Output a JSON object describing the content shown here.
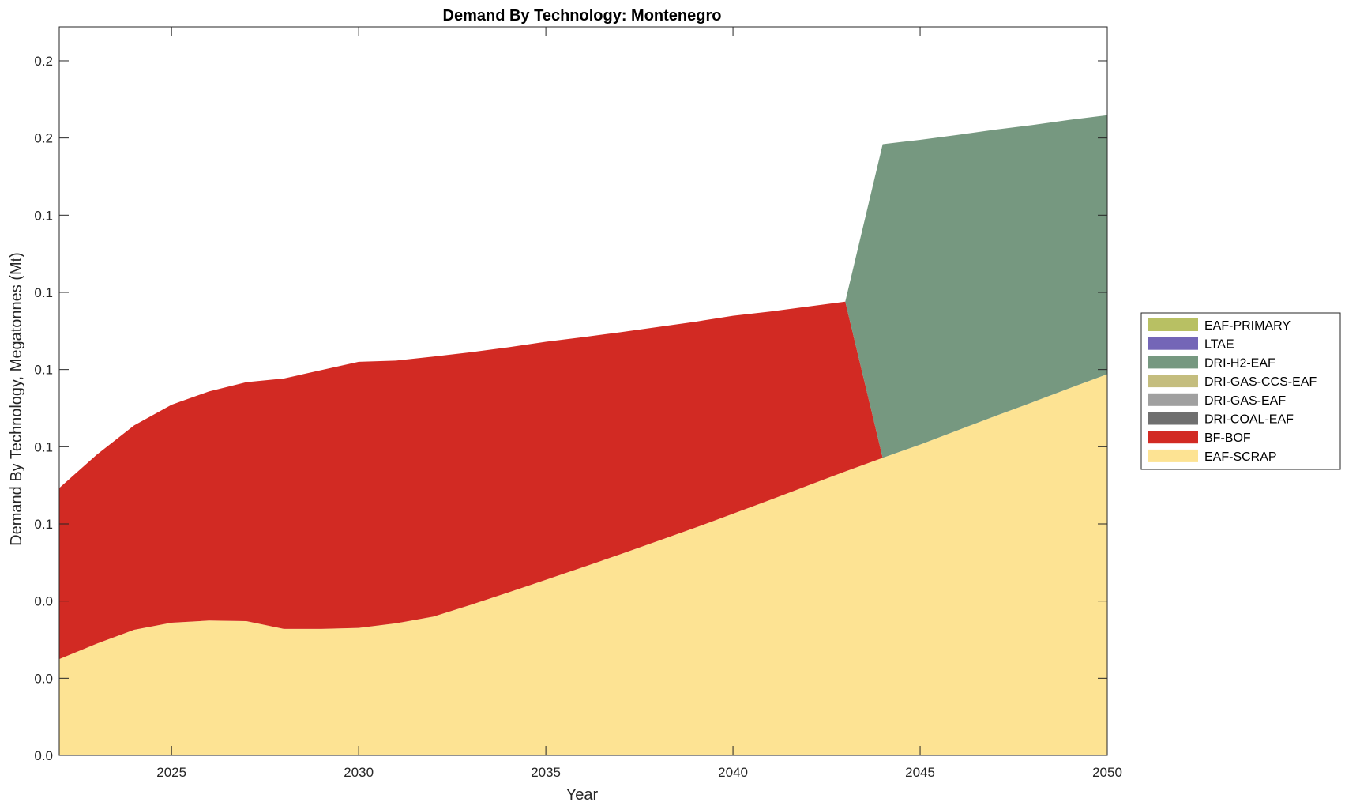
{
  "chart_data": {
    "type": "area",
    "stacked": true,
    "title": "Demand By Technology: Montenegro",
    "xlabel": "Year",
    "ylabel": "Demand By Technology, Megatonnes (Mt)",
    "xlim": [
      2022,
      2050
    ],
    "ylim": [
      0,
      0.236
    ],
    "xticks": [
      2025,
      2030,
      2035,
      2040,
      2045,
      2050
    ],
    "yticks": [
      0,
      0.025,
      0.05,
      0.075,
      0.1,
      0.125,
      0.15,
      0.175,
      0.2,
      0.225
    ],
    "ytick_labels": [
      "0.0",
      "0.0",
      "0.0",
      "0.1",
      "0.1",
      "0.1",
      "0.1",
      "0.1",
      "0.2",
      "0.2"
    ],
    "legend_position": "right",
    "grid": false,
    "x": [
      2022,
      2023,
      2024,
      2025,
      2026,
      2027,
      2028,
      2029,
      2030,
      2031,
      2032,
      2033,
      2034,
      2035,
      2036,
      2037,
      2038,
      2039,
      2040,
      2041,
      2042,
      2043,
      2044,
      2045,
      2046,
      2047,
      2048,
      2049,
      2050
    ],
    "series": [
      {
        "name": "EAF-PRIMARY",
        "color": "#b8c063",
        "values": [
          0,
          0,
          0,
          0,
          0,
          0,
          0,
          0,
          0,
          0,
          0,
          0,
          0,
          0,
          0,
          0,
          0,
          0,
          0,
          0,
          0,
          0,
          0,
          0,
          0,
          0,
          0,
          0,
          0
        ]
      },
      {
        "name": "LTAE",
        "color": "#7466b7",
        "values": [
          0,
          0,
          0,
          0,
          0,
          0,
          0,
          0,
          0,
          0,
          0,
          0,
          0,
          0,
          0,
          0,
          0,
          0,
          0,
          0,
          0,
          0,
          0,
          0,
          0,
          0,
          0,
          0,
          0
        ]
      },
      {
        "name": "DRI-H2-EAF",
        "color": "#769880",
        "values": [
          0,
          0,
          0,
          0,
          0,
          0,
          0,
          0,
          0,
          0,
          0,
          0,
          0,
          0,
          0,
          0,
          0,
          0,
          0,
          0,
          0,
          0.0,
          0.1016,
          0.0987,
          0.0957,
          0.0928,
          0.0898,
          0.0869,
          0.0839
        ]
      },
      {
        "name": "DRI-GAS-CCS-EAF",
        "color": "#c4bd7e",
        "values": [
          0,
          0,
          0,
          0,
          0,
          0,
          0,
          0,
          0,
          0,
          0,
          0,
          0,
          0,
          0,
          0,
          0,
          0,
          0,
          0,
          0,
          0,
          0,
          0,
          0,
          0,
          0,
          0,
          0
        ]
      },
      {
        "name": "DRI-GAS-EAF",
        "color": "#a0a0a0",
        "values": [
          0,
          0,
          0,
          0,
          0,
          0,
          0,
          0,
          0,
          0,
          0,
          0,
          0,
          0,
          0,
          0,
          0,
          0,
          0,
          0,
          0,
          0,
          0,
          0,
          0,
          0,
          0,
          0,
          0
        ]
      },
      {
        "name": "DRI-COAL-EAF",
        "color": "#6f6f6f",
        "values": [
          0,
          0,
          0,
          0,
          0,
          0,
          0,
          0,
          0,
          0,
          0,
          0,
          0,
          0,
          0,
          0,
          0,
          0,
          0,
          0,
          0,
          0,
          0,
          0,
          0,
          0,
          0,
          0,
          0
        ]
      },
      {
        "name": "BF-BOF",
        "color": "#d22a23",
        "values": [
          0.0554,
          0.0612,
          0.0662,
          0.0706,
          0.0742,
          0.0774,
          0.0811,
          0.0838,
          0.0862,
          0.0851,
          0.0842,
          0.0818,
          0.0794,
          0.0771,
          0.0745,
          0.0719,
          0.0693,
          0.0667,
          0.0641,
          0.061,
          0.058,
          0.055,
          0,
          0,
          0,
          0,
          0,
          0,
          0
        ]
      },
      {
        "name": "EAF-SCRAP",
        "color": "#fde393",
        "values": [
          0.0312,
          0.0362,
          0.0407,
          0.043,
          0.0437,
          0.0435,
          0.041,
          0.041,
          0.0413,
          0.0428,
          0.045,
          0.0488,
          0.0528,
          0.0569,
          0.061,
          0.0652,
          0.0695,
          0.0738,
          0.0783,
          0.0828,
          0.0874,
          0.092,
          0.0964,
          0.1007,
          0.1053,
          0.1099,
          0.1144,
          0.119,
          0.1235
        ]
      }
    ]
  }
}
